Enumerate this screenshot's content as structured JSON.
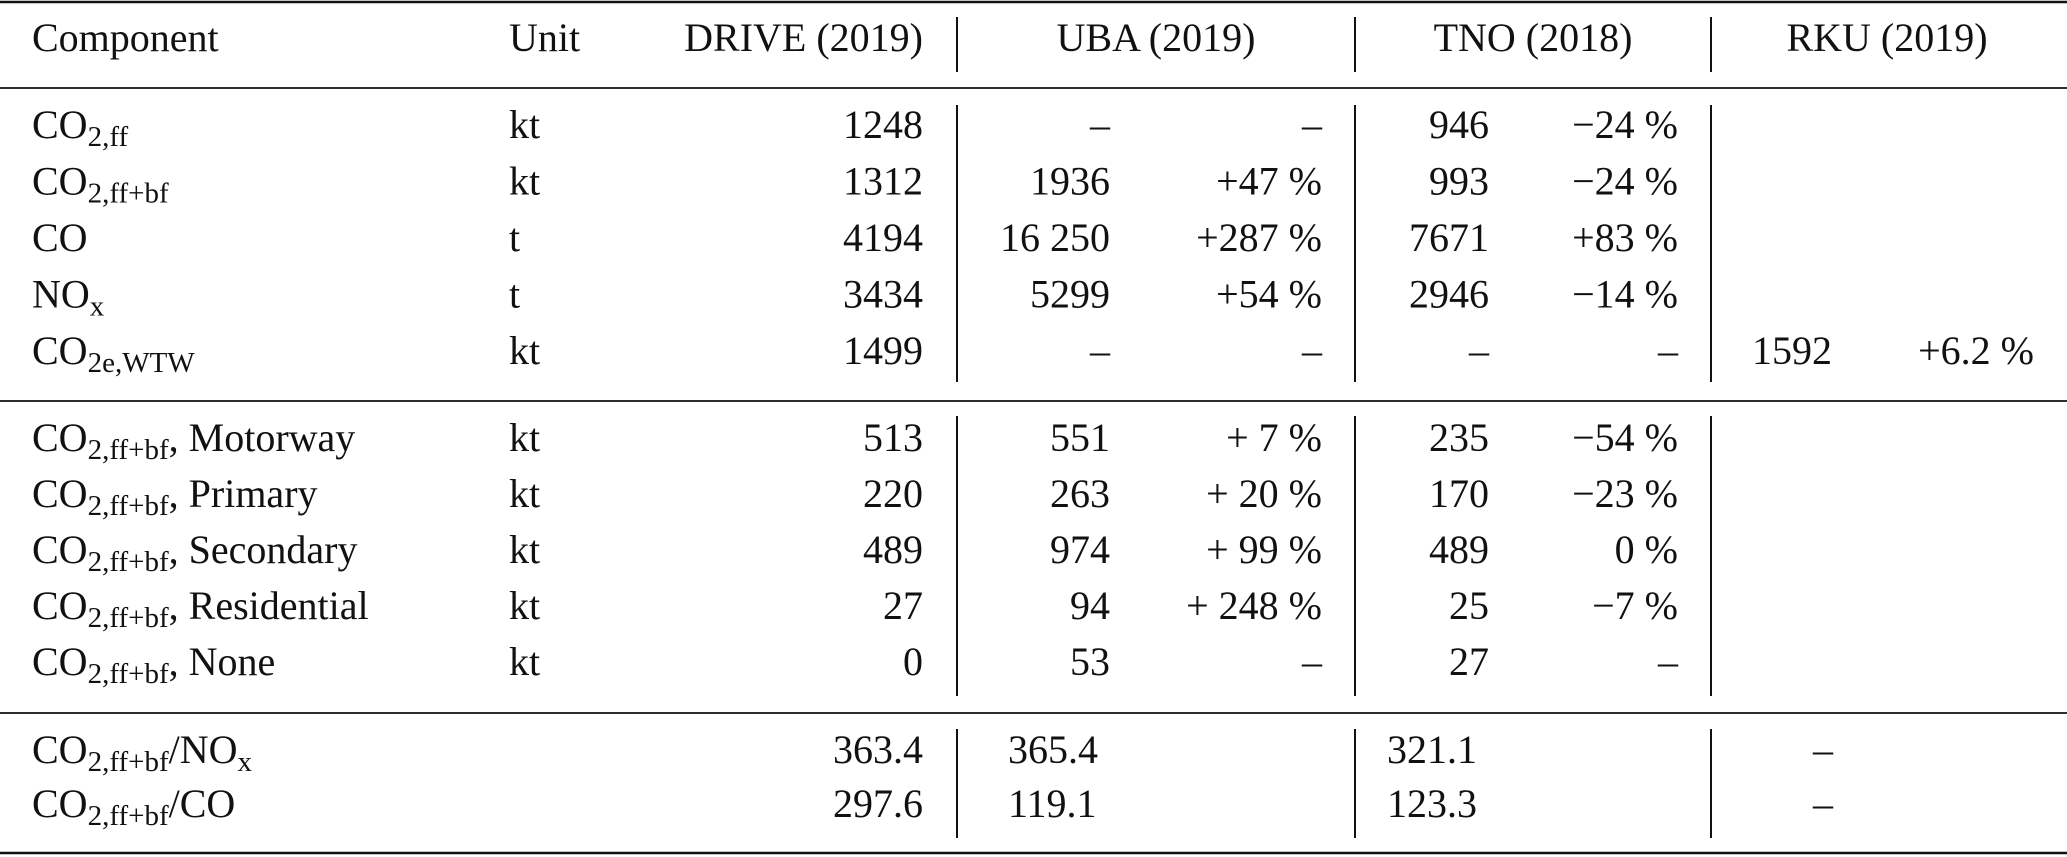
{
  "header": {
    "component": "Component",
    "unit": "Unit",
    "drive": "DRIVE (2019)",
    "uba": "UBA (2019)",
    "tno": "TNO (2018)",
    "rku": "RKU (2019)"
  },
  "sections": [
    {
      "rows": [
        {
          "component": [
            "CO",
            "2,ff"
          ],
          "unit": "kt",
          "drive": "1248",
          "uba": [
            "–",
            "–"
          ],
          "tno": [
            "946",
            "−24 %"
          ],
          "rku": null
        },
        {
          "component": [
            "CO",
            "2,ff+bf"
          ],
          "unit": "kt",
          "drive": "1312",
          "uba": [
            "1936",
            "+47 %"
          ],
          "tno": [
            "993",
            "−24 %"
          ],
          "rku": null
        },
        {
          "component": [
            "CO"
          ],
          "unit": "t",
          "drive": "4194",
          "uba": [
            "16 250",
            "+287 %"
          ],
          "tno": [
            "7671",
            "+83 %"
          ],
          "rku": null
        },
        {
          "component": [
            "NO",
            "x"
          ],
          "unit": "t",
          "drive": "3434",
          "uba": [
            "5299",
            "+54 %"
          ],
          "tno": [
            "2946",
            "−14 %"
          ],
          "rku": null
        },
        {
          "component": [
            "CO",
            "2e,WTW"
          ],
          "unit": "kt",
          "drive": "1499",
          "uba": [
            "–",
            "–"
          ],
          "tno": [
            "–",
            "–"
          ],
          "rku": [
            "1592",
            "+6.2 %"
          ]
        }
      ]
    },
    {
      "rows": [
        {
          "component": [
            "CO",
            "2,ff+bf",
            ", Motorway"
          ],
          "unit": "kt",
          "drive": "513",
          "uba": [
            "551",
            "+ 7 %"
          ],
          "tno": [
            "235",
            "−54 %"
          ],
          "rku": null
        },
        {
          "component": [
            "CO",
            "2,ff+bf",
            ", Primary"
          ],
          "unit": "kt",
          "drive": "220",
          "uba": [
            "263",
            "+ 20 %"
          ],
          "tno": [
            "170",
            "−23 %"
          ],
          "rku": null
        },
        {
          "component": [
            "CO",
            "2,ff+bf",
            ", Secondary"
          ],
          "unit": "kt",
          "drive": "489",
          "uba": [
            "974",
            "+ 99 %"
          ],
          "tno": [
            "489",
            "0 %"
          ],
          "rku": null
        },
        {
          "component": [
            "CO",
            "2,ff+bf",
            ", Residential"
          ],
          "unit": "kt",
          "drive": "27",
          "uba": [
            "94",
            "+ 248 %"
          ],
          "tno": [
            "25",
            "−7 %"
          ],
          "rku": null
        },
        {
          "component": [
            "CO",
            "2,ff+bf",
            ", None"
          ],
          "unit": "kt",
          "drive": "0",
          "uba": [
            "53",
            "–"
          ],
          "tno": [
            "27",
            "–"
          ],
          "rku": null
        }
      ]
    },
    {
      "rows": [
        {
          "component": [
            "CO",
            "2,ff+bf",
            "/NO",
            "x"
          ],
          "unit": null,
          "drive": "363.4",
          "uba": "365.4",
          "tno": "321.1",
          "rku": "–"
        },
        {
          "component": [
            "CO",
            "2,ff+bf",
            "/CO"
          ],
          "unit": null,
          "drive": "297.6",
          "uba": "119.1",
          "tno": "123.3",
          "rku": "–"
        }
      ]
    }
  ]
}
